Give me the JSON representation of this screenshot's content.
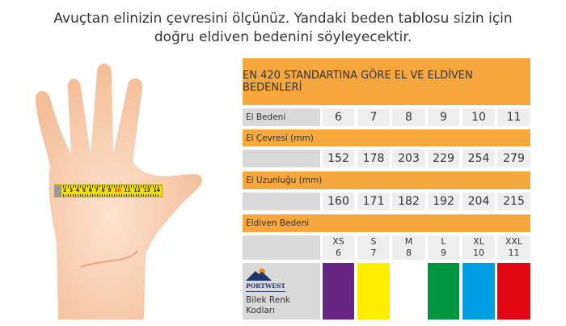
{
  "intro": [
    "Avuçtan elinizin çevresini ölçünüz. Yandaki beden tablosu sizin için",
    "doğru eldiven bedenini söyleyecektir."
  ],
  "tape": {
    "numbers": [
      "2",
      "3",
      "4",
      "5",
      "6",
      "7",
      "8",
      "9",
      "10",
      "11",
      "12",
      "13",
      "14"
    ],
    "highlight": "10"
  },
  "table": {
    "title": "EN 420 STANDARTINA GÖRE EL VE ELDİVEN BEDENLERİ",
    "hand_size_label": "El Bedeni",
    "hand_sizes": [
      "6",
      "7",
      "8",
      "9",
      "10",
      "11"
    ],
    "circumference_label": "El Çevresi (mm)",
    "circumferences": [
      "152",
      "178",
      "203",
      "229",
      "254",
      "279"
    ],
    "length_label": "El Uzunluğu (mm)",
    "lengths": [
      "160",
      "171",
      "182",
      "192",
      "204",
      "215"
    ],
    "glove_size_label": "Eldiven Bedeni",
    "glove_sizes": [
      {
        "letter": "XS",
        "number": "6"
      },
      {
        "letter": "S",
        "number": "7"
      },
      {
        "letter": "M",
        "number": "8"
      },
      {
        "letter": "L",
        "number": "9"
      },
      {
        "letter": "XL",
        "number": "10"
      },
      {
        "letter": "XXL",
        "number": "11"
      }
    ],
    "brand": "PORTWEST",
    "color_code_label": [
      "Bilek Renk",
      "Kodları"
    ],
    "cuff_colors": [
      "#662483",
      "#ffed00",
      "#ffffff",
      "#009640",
      "#009fe3",
      "#e30613"
    ]
  },
  "colors": {
    "header": "#f6a83e",
    "label_cell": "#d9d9d9",
    "value_cell": "#eeeeee"
  }
}
